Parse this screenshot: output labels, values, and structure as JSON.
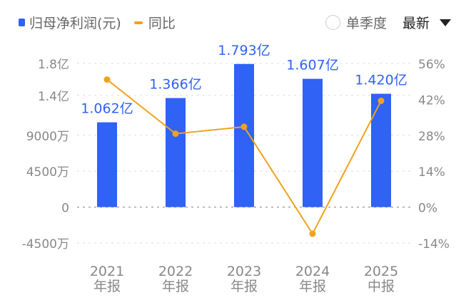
{
  "legend": {
    "bar_label": "归母净利润(元)",
    "line_label": "同比"
  },
  "controls": {
    "single_quarter": "单季度",
    "latest": "最新",
    "icon": "caret-down-icon"
  },
  "colors": {
    "bar": "#2f62f5",
    "line": "#f0a21e",
    "grid": "#bbbbbb",
    "axis_text": "#888888",
    "label": "#2f62f5"
  },
  "chart_data": {
    "type": "bar+line",
    "categories": [
      [
        "2021",
        "年报"
      ],
      [
        "2022",
        "年报"
      ],
      [
        "2023",
        "年报"
      ],
      [
        "2024",
        "年报"
      ],
      [
        "2025",
        "中报"
      ]
    ],
    "series": [
      {
        "name": "归母净利润(元)",
        "type": "bar",
        "axis": "left",
        "values": [
          106200000,
          136600000,
          179300000,
          160700000,
          142000000
        ],
        "labels": [
          "1.062亿",
          "1.366亿",
          "1.793亿",
          "1.607亿",
          "1.420亿"
        ]
      },
      {
        "name": "同比",
        "type": "line",
        "axis": "right",
        "values": [
          49.7,
          28.6,
          31.3,
          -10.4,
          41.4
        ]
      }
    ],
    "left_axis": {
      "range": [
        -45000000,
        180000000
      ],
      "ticks": [
        180000000,
        140000000,
        90000000,
        45000000,
        0,
        -45000000
      ],
      "tick_labels": [
        "1.8亿",
        "1.4亿",
        "9000万",
        "4500万",
        "0",
        "-4500万"
      ]
    },
    "right_axis": {
      "range": [
        -14,
        56
      ],
      "ticks": [
        56,
        42,
        28,
        14,
        0,
        -14
      ],
      "tick_labels": [
        "56%",
        "42%",
        "28%",
        "14%",
        "0%",
        "-14%"
      ]
    },
    "grid": true
  }
}
